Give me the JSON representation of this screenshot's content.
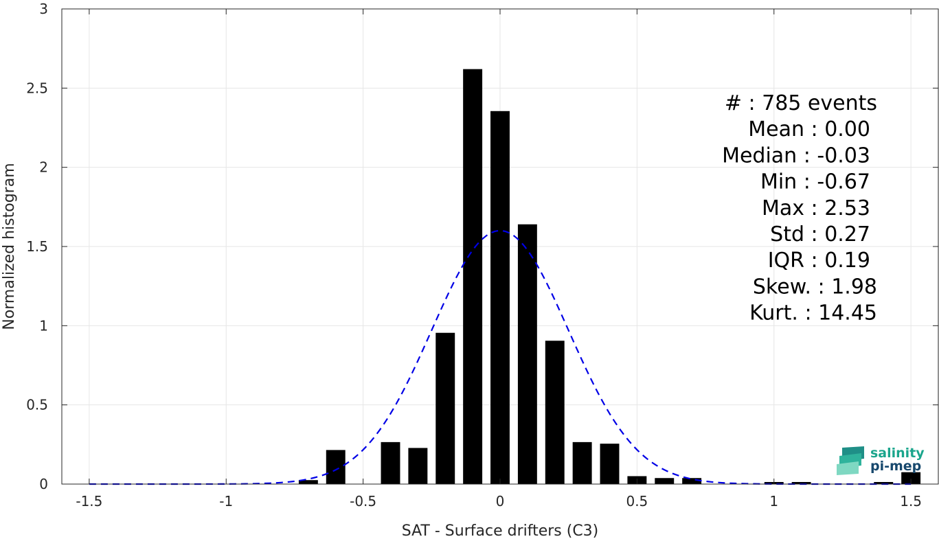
{
  "chart_data": {
    "type": "bar",
    "xlabel": "SAT - Surface drifters (C3)",
    "ylabel": "Normalized histogram",
    "xlim": [
      -1.6,
      1.6
    ],
    "ylim": [
      0,
      3
    ],
    "x_ticks": [
      -1.5,
      -1,
      -0.5,
      0,
      0.5,
      1,
      1.5
    ],
    "x_tick_labels": [
      "-1.5",
      "-1",
      "-0.5",
      "0",
      "0.5",
      "1",
      "1.5"
    ],
    "y_ticks": [
      0,
      0.5,
      1,
      1.5,
      2,
      2.5,
      3
    ],
    "y_tick_labels": [
      "0",
      "0.5",
      "1",
      "1.5",
      "2",
      "2.5",
      "3"
    ],
    "grid": true,
    "bar_width": 0.07,
    "bars": [
      {
        "x": -0.7,
        "y": 0.025
      },
      {
        "x": -0.6,
        "y": 0.215
      },
      {
        "x": -0.4,
        "y": 0.265
      },
      {
        "x": -0.3,
        "y": 0.228
      },
      {
        "x": -0.2,
        "y": 0.955
      },
      {
        "x": -0.1,
        "y": 2.62
      },
      {
        "x": 0.0,
        "y": 2.355
      },
      {
        "x": 0.1,
        "y": 1.64
      },
      {
        "x": 0.2,
        "y": 0.905
      },
      {
        "x": 0.3,
        "y": 0.265
      },
      {
        "x": 0.4,
        "y": 0.255
      },
      {
        "x": 0.5,
        "y": 0.05
      },
      {
        "x": 0.6,
        "y": 0.038
      },
      {
        "x": 0.7,
        "y": 0.038
      },
      {
        "x": 1.0,
        "y": 0.013
      },
      {
        "x": 1.1,
        "y": 0.013
      },
      {
        "x": 1.4,
        "y": 0.013
      },
      {
        "x": 1.5,
        "y": 0.075
      }
    ],
    "bar_color": "#000000",
    "fit_curve": {
      "mean": 0.0,
      "std": 0.25,
      "peak": 1.6,
      "x_range": [
        -1.5,
        1.5
      ],
      "color": "#0000e6",
      "style": "dashed"
    },
    "stats_lines": [
      "#  : 785 events",
      "Mean : 0.00",
      "Median : -0.03",
      "Min : -0.67",
      "Max : 2.53",
      "Std : 0.27",
      "IQR : 0.19",
      "Skew. : 1.98",
      "Kurt. : 14.45"
    ]
  },
  "logo": {
    "line1": "salinity",
    "line2": "pi-mep",
    "color1": "#1aa58c",
    "color2": "#17486d"
  }
}
